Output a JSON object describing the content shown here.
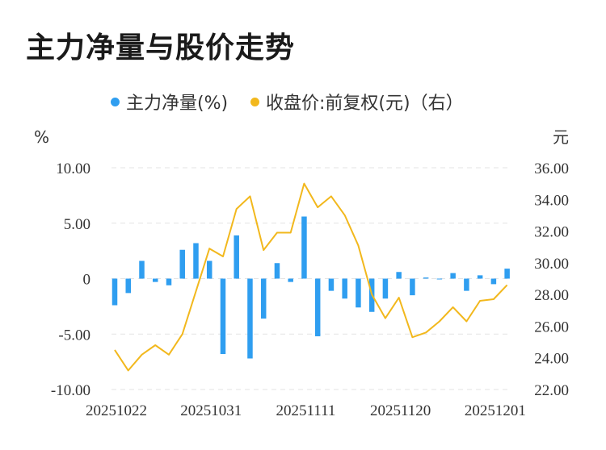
{
  "chart_data": {
    "type": "bar+line",
    "title": "主力净量与股价走势",
    "legend": [
      {
        "label": "主力净量(%)",
        "color": "#2f9ef0"
      },
      {
        "label": "收盘价:前复权(元)（右）",
        "color": "#f2b81d"
      }
    ],
    "left_unit": "%",
    "right_unit": "元",
    "left_ticks": [
      "10.00",
      "5.00",
      "0",
      "-5.00",
      "-10.00"
    ],
    "left_range": [
      -10,
      10
    ],
    "right_ticks": [
      "36.00",
      "34.00",
      "32.00",
      "30.00",
      "28.00",
      "26.00",
      "24.00",
      "22.00"
    ],
    "right_range": [
      22,
      36
    ],
    "x_tick_labels": [
      {
        "index": 0,
        "label": "20251022"
      },
      {
        "index": 7,
        "label": "20251031"
      },
      {
        "index": 14,
        "label": "20251111"
      },
      {
        "index": 21,
        "label": "20251120"
      },
      {
        "index": 28,
        "label": "20251201"
      }
    ],
    "net_volume": [
      -2.4,
      -1.3,
      1.6,
      -0.3,
      -0.6,
      2.6,
      3.2,
      1.6,
      -6.8,
      3.9,
      -7.2,
      -3.6,
      1.4,
      -0.3,
      5.6,
      -5.2,
      -1.1,
      -1.8,
      -2.6,
      -3.0,
      -1.8,
      0.6,
      -1.5,
      0.1,
      0.0,
      0.5,
      -1.1,
      0.3,
      -0.5,
      0.9
    ],
    "close_price": [
      24.5,
      23.2,
      24.2,
      24.8,
      24.2,
      25.5,
      28.2,
      30.9,
      30.4,
      33.4,
      34.2,
      30.8,
      31.9,
      31.9,
      35.0,
      33.5,
      34.2,
      33.0,
      31.1,
      28.0,
      26.5,
      27.8,
      25.3,
      25.6,
      26.3,
      27.2,
      26.3,
      27.6,
      27.7,
      28.6
    ]
  }
}
